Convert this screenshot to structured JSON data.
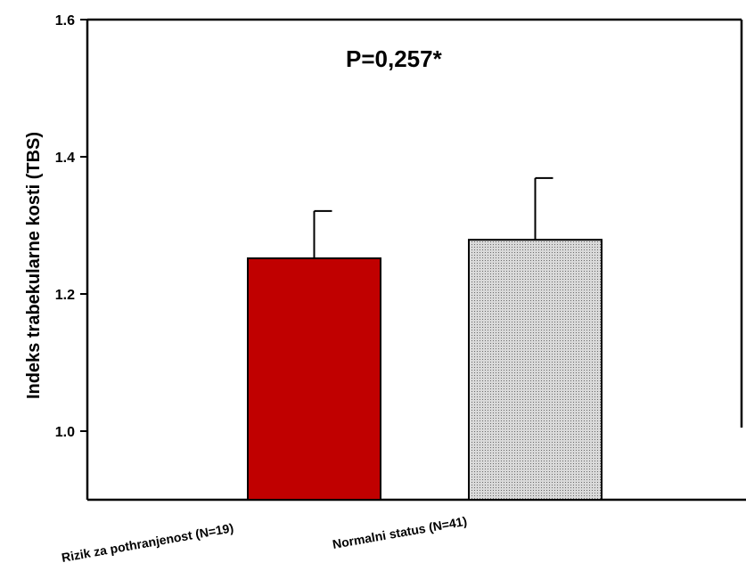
{
  "chart_data": {
    "type": "bar",
    "categories": [
      "Rizik za pothranjenost (N=19)",
      "Normalni status (N=41)"
    ],
    "values": [
      1.252,
      1.279
    ],
    "error_upper": [
      1.321,
      1.369
    ],
    "bar_colors": [
      "#c00000",
      "#bdbdbd"
    ],
    "bar_patterns": [
      "solid",
      "dotted"
    ],
    "ylabel": "Indeks trabekularne kosti (TBS)",
    "xlabel": "",
    "ylim": [
      0.9,
      1.6
    ],
    "yticks": [
      1.0,
      1.2,
      1.4,
      1.6
    ],
    "ytick_labels": [
      "1.0",
      "1.2",
      "1.4",
      "1.6"
    ],
    "annotation": "P=0,257*",
    "grid": false
  }
}
